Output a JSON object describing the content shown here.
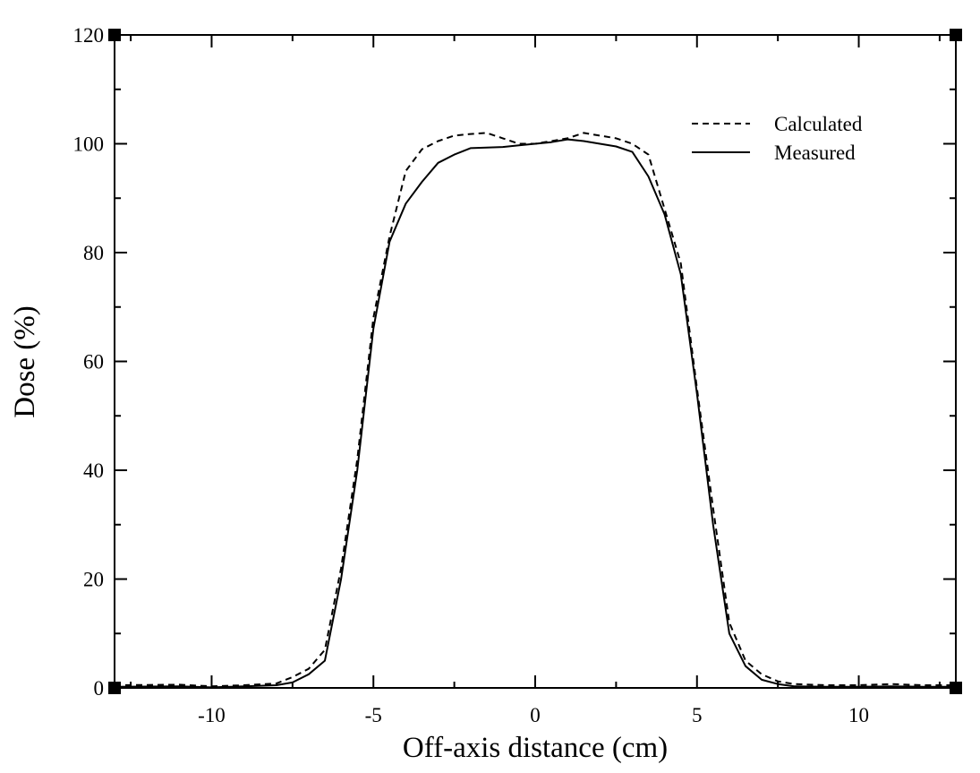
{
  "chart_data": {
    "type": "line",
    "xlabel": "Off-axis distance (cm)",
    "ylabel": "Dose (%)",
    "xlim": [
      -13,
      13
    ],
    "ylim": [
      0,
      120
    ],
    "x_ticks": [
      -10,
      -5,
      0,
      5,
      10
    ],
    "x_tick_labels": [
      "-10",
      "-5",
      "0",
      "5",
      "10"
    ],
    "y_ticks": [
      0,
      20,
      40,
      60,
      80,
      100,
      120
    ],
    "y_tick_labels": [
      "0",
      "20",
      "40",
      "60",
      "80",
      "100",
      "120"
    ],
    "x_minor_step": 2.5,
    "y_minor_step": 10,
    "grid": false,
    "legend": {
      "position": "top-right"
    },
    "series": [
      {
        "name": "Calculated",
        "style": "dashed",
        "color": "#000000",
        "x": [
          -13,
          -11,
          -10,
          -9,
          -8,
          -7.5,
          -7,
          -6.5,
          -6,
          -5.5,
          -5,
          -4.5,
          -4,
          -3.5,
          -3,
          -2.5,
          -2,
          -1.5,
          -1,
          -0.5,
          0,
          0.5,
          1,
          1.5,
          2,
          2.5,
          3,
          3.5,
          4,
          4.5,
          5,
          5.5,
          6,
          6.5,
          7,
          7.5,
          8,
          9,
          10,
          11,
          12,
          13
        ],
        "y": [
          0.5,
          0.6,
          0.3,
          0.5,
          0.8,
          2,
          3.5,
          7,
          22,
          42,
          68,
          83,
          95,
          99,
          100.5,
          101.5,
          101.8,
          102,
          101,
          100,
          100,
          100.5,
          101,
          102,
          101.5,
          101,
          100,
          98,
          88,
          78,
          55,
          33,
          12,
          5,
          2.5,
          1.2,
          0.7,
          0.5,
          0.5,
          0.7,
          0.5,
          0.5
        ]
      },
      {
        "name": "Measured",
        "style": "solid",
        "color": "#000000",
        "x": [
          -13,
          -11,
          -10,
          -9,
          -8,
          -7.5,
          -7,
          -6.5,
          -6,
          -5.5,
          -5,
          -4.5,
          -4,
          -3.5,
          -3,
          -2.5,
          -2,
          -1.5,
          -1,
          -0.5,
          0,
          0.5,
          1,
          1.5,
          2,
          2.5,
          3,
          3.5,
          4,
          4.5,
          5,
          5.5,
          6,
          6.5,
          7,
          7.5,
          8,
          9,
          10,
          11,
          12,
          13
        ],
        "y": [
          0.2,
          0.3,
          0.1,
          0.3,
          0.5,
          1,
          2.5,
          5,
          20,
          40,
          66,
          82,
          89,
          93,
          96.5,
          98,
          99.2,
          99.3,
          99.4,
          99.7,
          100,
          100.3,
          100.8,
          100.5,
          100,
          99.5,
          98.5,
          94,
          87,
          76,
          54,
          30,
          10,
          4,
          1.5,
          0.7,
          0.3,
          0.2,
          0.2,
          0.3,
          0.2,
          0.2
        ]
      }
    ]
  }
}
